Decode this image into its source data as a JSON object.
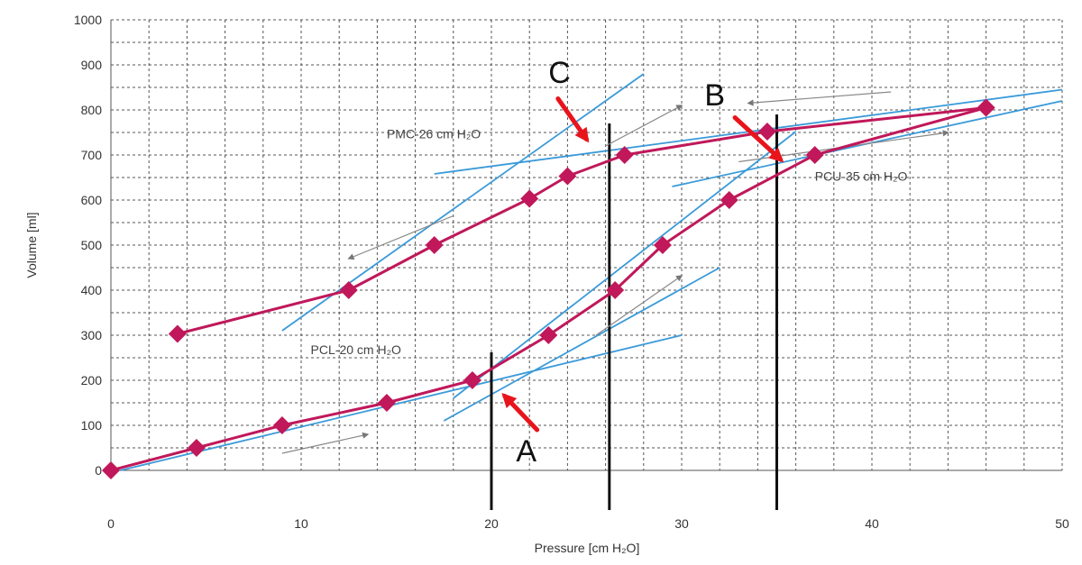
{
  "chart_data": {
    "type": "line",
    "title": "",
    "xlabel": "Pressure [cm H₂O]",
    "ylabel": "Volume [ml]",
    "xlim": [
      0,
      50
    ],
    "ylim": [
      0,
      1000
    ],
    "x_ticks": [
      "0",
      "10",
      "20",
      "30",
      "40",
      "50"
    ],
    "y_ticks": [
      "0",
      "100",
      "200",
      "300",
      "400",
      "500",
      "600",
      "700",
      "800",
      "900",
      "1000"
    ],
    "grid": true,
    "colors": {
      "curve": "#c0185a",
      "marker": "#c0185a",
      "tangent": "#3a9ad9",
      "vline": "#111111",
      "arrow_red": "#e8141c",
      "arrow_gray": "#888888",
      "grid": "#555555"
    },
    "series": [
      {
        "values": [
          [
            0,
            0
          ],
          [
            4.5,
            50
          ],
          [
            9,
            100
          ],
          [
            14.5,
            150
          ],
          [
            19,
            200
          ],
          [
            23,
            300
          ],
          [
            26.5,
            400
          ],
          [
            29,
            500
          ],
          [
            32.5,
            600
          ],
          [
            37,
            700
          ],
          [
            46,
            805
          ]
        ]
      },
      {
        "values": [
          [
            3.5,
            303
          ],
          [
            12.5,
            400
          ],
          [
            17,
            500
          ],
          [
            22,
            603
          ],
          [
            24,
            653
          ],
          [
            27,
            700
          ],
          [
            34.5,
            752
          ],
          [
            46,
            805
          ]
        ]
      }
    ],
    "tangents": [
      [
        [
          17.5,
          110
        ],
        [
          32,
          450
        ]
      ],
      [
        [
          0.5,
          0
        ],
        [
          30,
          300
        ]
      ],
      [
        [
          9,
          310
        ],
        [
          28,
          880
        ]
      ],
      [
        [
          17,
          658
        ],
        [
          50,
          845
        ]
      ],
      [
        [
          29.5,
          630
        ],
        [
          50,
          820
        ]
      ],
      [
        [
          18,
          160
        ],
        [
          36,
          752
        ]
      ]
    ],
    "vertical_lines": [
      20,
      26.2,
      35
    ],
    "gray_arrows": [
      [
        [
          9,
          38
        ],
        [
          13.5,
          80
        ]
      ],
      [
        [
          25.5,
          300
        ],
        [
          30,
          432
        ]
      ],
      [
        [
          33,
          685
        ],
        [
          44,
          750
        ]
      ],
      [
        [
          41,
          840
        ],
        [
          33.5,
          815
        ]
      ],
      [
        [
          18,
          565
        ],
        [
          12.5,
          470
        ]
      ],
      [
        [
          26,
          720
        ],
        [
          30,
          810
        ]
      ]
    ],
    "annotations": [
      {
        "label": "PMC-26 cm H₂O",
        "x": 14.5,
        "y": 737
      },
      {
        "label": "PCU-35 cm H₂O",
        "x": 37,
        "y": 643
      },
      {
        "label": "PCL-20 cm H₂O",
        "x": 10.5,
        "y": 258
      }
    ],
    "callouts": [
      {
        "letter": "C",
        "text_x": 23,
        "text_y": 860,
        "from": [
          23.5,
          825
        ],
        "to": [
          25,
          735
        ]
      },
      {
        "letter": "B",
        "text_x": 31.2,
        "text_y": 810,
        "from": [
          32.8,
          783
        ],
        "to": [
          35.2,
          690
        ]
      },
      {
        "letter": "A",
        "text_x": 21.3,
        "text_y": 20,
        "from": [
          22.4,
          90
        ],
        "to": [
          20.7,
          165
        ]
      }
    ]
  }
}
